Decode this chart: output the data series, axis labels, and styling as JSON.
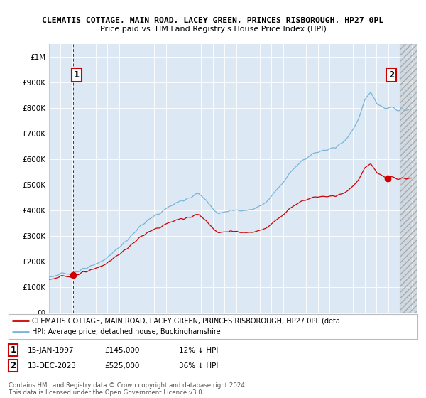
{
  "title": "CLEMATIS COTTAGE, MAIN ROAD, LACEY GREEN, PRINCES RISBOROUGH, HP27 0PL",
  "subtitle": "Price paid vs. HM Land Registry's House Price Index (HPI)",
  "legend_line1": "CLEMATIS COTTAGE, MAIN ROAD, LACEY GREEN, PRINCES RISBOROUGH, HP27 0PL (deta",
  "legend_line2": "HPI: Average price, detached house, Buckinghamshire",
  "transaction1_date": "15-JAN-1997",
  "transaction1_price": 145000,
  "transaction1_pct": "12% ↓ HPI",
  "transaction2_date": "13-DEC-2023",
  "transaction2_price": 525000,
  "transaction2_pct": "36% ↓ HPI",
  "copyright": "Contains HM Land Registry data © Crown copyright and database right 2024.\nThis data is licensed under the Open Government Licence v3.0.",
  "hpi_color": "#7ab4d8",
  "price_color": "#cc0000",
  "dot_color": "#cc0000",
  "vline_color": "#cc0000",
  "background_color": "#dce9f5",
  "hatch_color": "#c0c8d8",
  "ylim": [
    0,
    1050000
  ],
  "yticks": [
    0,
    100000,
    200000,
    300000,
    400000,
    500000,
    600000,
    700000,
    800000,
    900000,
    1000000
  ],
  "xlim_start": 1995,
  "xlim_end": 2026.5,
  "transaction1_x": 1997.04,
  "transaction2_x": 2023.96
}
